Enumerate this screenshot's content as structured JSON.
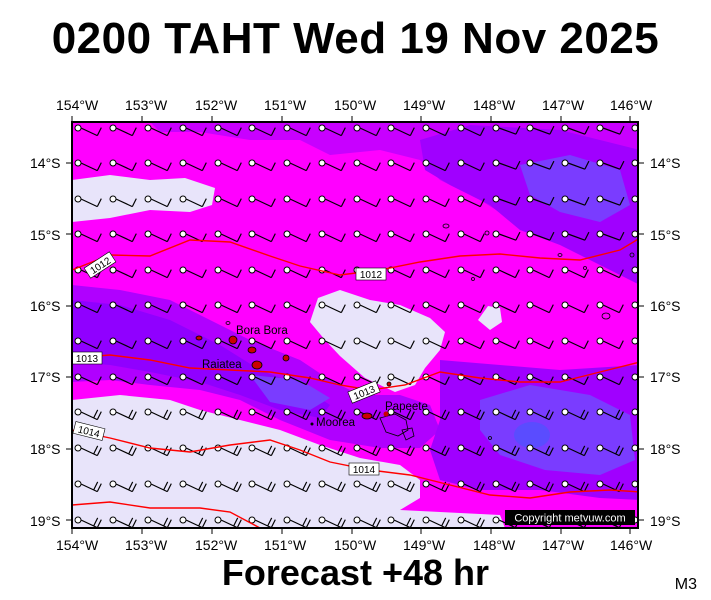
{
  "header": {
    "title": "0200 TAHT Wed 19 Nov 2025"
  },
  "footer": {
    "forecast": "Forecast +48 hr",
    "model": "M3"
  },
  "copyright": "Copyright metvuw.com",
  "map": {
    "lon_labels": [
      "154°W",
      "153°W",
      "152°W",
      "151°W",
      "150°W",
      "149°W",
      "148°W",
      "147°W",
      "146°W"
    ],
    "lat_labels": [
      "14°S",
      "15°S",
      "16°S",
      "17°S",
      "18°S",
      "19°S"
    ],
    "isobars": [
      {
        "value": "1012",
        "labels": [
          "1012",
          "1012"
        ]
      },
      {
        "value": "1013",
        "labels": [
          "1013",
          "1013"
        ]
      },
      {
        "value": "1014",
        "labels": [
          "1014",
          "1014"
        ]
      }
    ],
    "places": [
      "Bora Bora",
      "Raiatea",
      "Moorea",
      "Papeete"
    ],
    "colors": {
      "background_magenta": "#ff00ff",
      "light_violet": "#e8e4fa",
      "purple_mid": "#b000ff",
      "purple_deep": "#9000ff",
      "blue_violet": "#7a3cff",
      "isobar": "#ff0000",
      "land": "#cc0000"
    }
  }
}
